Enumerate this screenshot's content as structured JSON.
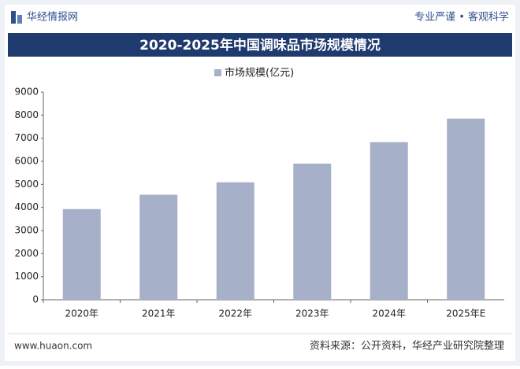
{
  "header": {
    "brand": "华经情报网",
    "slogan": "专业严谨 • 客观科学"
  },
  "chart_data": {
    "type": "bar",
    "title": "2020-2025年中国调味品市场规模情况",
    "categories": [
      "2020年",
      "2021年",
      "2022年",
      "2023年",
      "2024年",
      "2025年E"
    ],
    "series": [
      {
        "name": "市场规模(亿元)",
        "color": "#a6b0c9",
        "values": [
          3930,
          4550,
          5090,
          5900,
          6830,
          7850
        ]
      }
    ],
    "ylim": [
      0,
      9000
    ],
    "yticks": [
      0,
      1000,
      2000,
      3000,
      4000,
      5000,
      6000,
      7000,
      8000,
      9000
    ],
    "grid": false
  },
  "footer": {
    "website": "www.huaon.com",
    "source": "资料来源：公开资料，华经产业研究院整理"
  }
}
